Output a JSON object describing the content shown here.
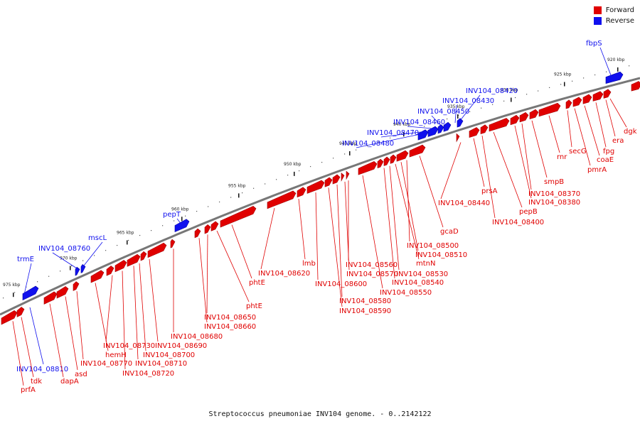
{
  "legend": {
    "forward_label": "Forward",
    "forward_color": "#e00000",
    "reverse_label": "Reverse",
    "reverse_color": "#1010ee"
  },
  "footer": {
    "title": "Streptococcus pneumoniae INV104 genome. - 0..2142122"
  },
  "backbone_color": "#777777",
  "scale_ticks": [
    "975 kbp",
    "970 kbp",
    "965 kbp",
    "960 kbp",
    "955 kbp",
    "950 kbp",
    "945 kbp",
    "940 kbp",
    "935 kbp",
    "930 kbp",
    "925 kbp",
    "920 kbp"
  ],
  "reverse_genes": [
    "trmE",
    "INV104_08760",
    "mscL",
    "pepT",
    "INV104_08480",
    "INV104_08470",
    "INV104_08460",
    "INV104_08450",
    "INV104_08430",
    "INV104_08420",
    "fbpS",
    "INV104_08810"
  ],
  "forward_genes": [
    "prfA",
    "tdk",
    "dapA",
    "asd",
    "INV104_08770",
    "hemH",
    "INV104_08730",
    "INV104_08720",
    "INV104_08710",
    "INV104_08700",
    "INV104_08690",
    "INV104_08680",
    "INV104_08660",
    "INV104_08650",
    "phtE",
    "phtE",
    "INV104_08620",
    "lmb",
    "INV104_08600",
    "INV104_08590",
    "INV104_08580",
    "INV104_08570",
    "INV104_08560",
    "INV104_08550",
    "INV104_08540",
    "INV104_08530",
    "mtnN",
    "INV104_08510",
    "INV104_08500",
    "gcaD",
    "INV104_08440",
    "prsA",
    "INV104_08400",
    "pepB",
    "INV104_08380",
    "INV104_08370",
    "smpB",
    "rnr",
    "secG",
    "pmrA",
    "coaE",
    "fpg",
    "era",
    "dgk"
  ]
}
